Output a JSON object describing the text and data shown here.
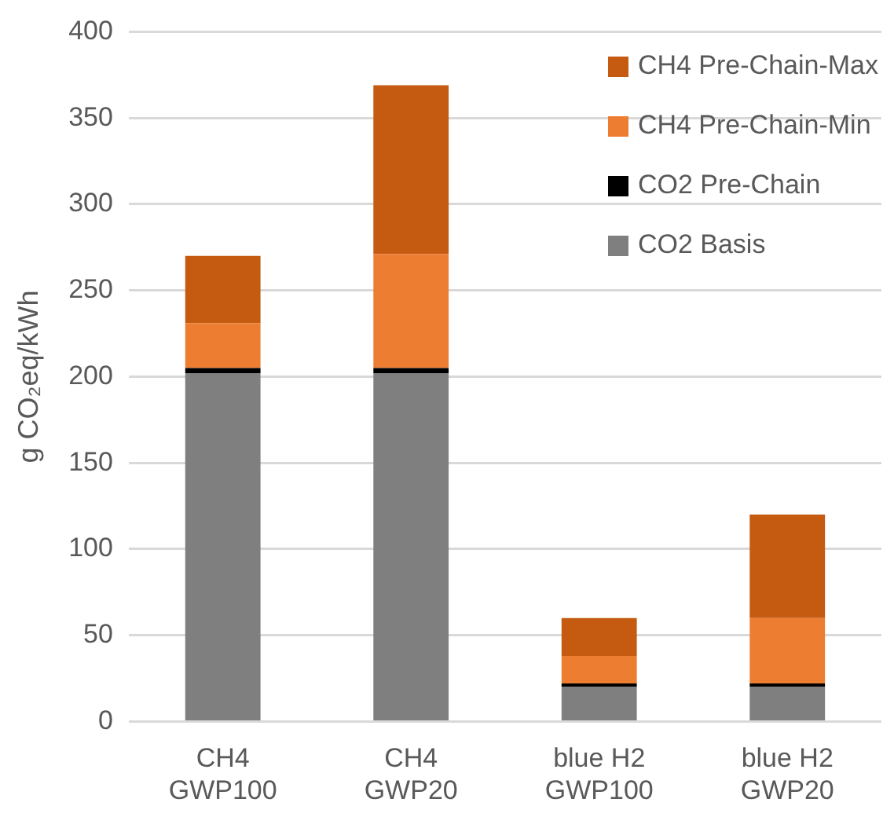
{
  "chart_data": {
    "type": "bar",
    "stacked": true,
    "ylabel": "g CO₂eq/kWh",
    "categories": [
      "CH4\nGWP100",
      "CH4\nGWP20",
      "blue H2\nGWP100",
      "blue H2\nGWP20"
    ],
    "series": [
      {
        "name": "CO2 Basis",
        "color": "#7f7f7f",
        "values": [
          202,
          202,
          20,
          20
        ]
      },
      {
        "name": "CO2 Pre-Chain",
        "color": "#000000",
        "values": [
          3,
          3,
          2,
          2
        ]
      },
      {
        "name": "CH4 Pre-Chain-Min",
        "color": "#ed7d31",
        "values": [
          26,
          66,
          16,
          38
        ]
      },
      {
        "name": "CH4 Pre-Chain-Max",
        "color": "#c55a11",
        "values": [
          39,
          98,
          22,
          60
        ]
      }
    ],
    "ylim": [
      0,
      400
    ],
    "yticks": [
      0,
      50,
      100,
      150,
      200,
      250,
      300,
      350,
      400
    ],
    "grid": "y",
    "legend": "top right"
  }
}
